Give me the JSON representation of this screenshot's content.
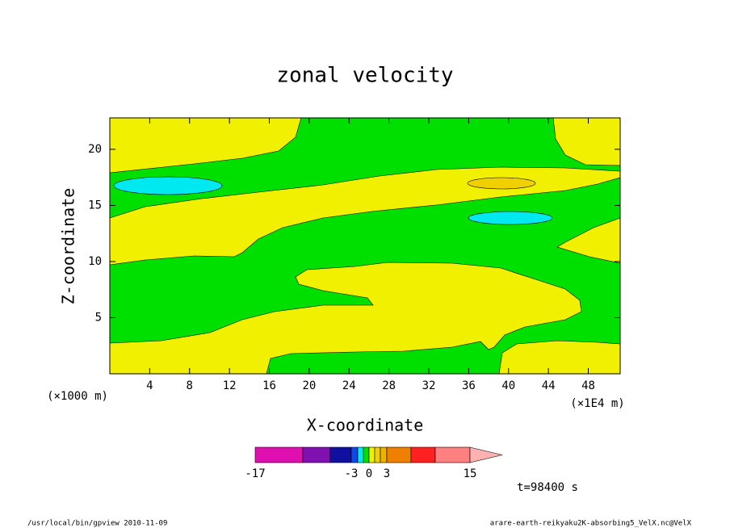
{
  "chart_data": {
    "type": "contour",
    "title": "zonal velocity",
    "x_label": "X-coordinate",
    "y_label": "Z-coordinate",
    "x_unit": "(×1E4 m)",
    "y_unit": "(×1000 m)",
    "xlim": [
      0,
      51.2
    ],
    "ylim": [
      0,
      22.8
    ],
    "xticks": [
      4,
      8,
      12,
      16,
      20,
      24,
      28,
      32,
      36,
      40,
      44,
      48
    ],
    "yticks": [
      5,
      10,
      15,
      20
    ],
    "levels": [
      -17,
      -12,
      -7,
      -3,
      -2,
      -1,
      0,
      1,
      2,
      3,
      7,
      11,
      15
    ],
    "level_colors": [
      "#e010b0",
      "#8010b0",
      "#1010a0",
      "#1048e8",
      "#00e8f0",
      "#00e000",
      "#f0f000",
      "#f0d000",
      "#f0b000",
      "#f08000",
      "#ff2020",
      "#ff8080",
      "#ffb0b0"
    ],
    "colorbar_ticks": [
      -17,
      -3,
      0,
      3,
      15
    ],
    "time_label": "t=98400 s",
    "footer_left": "/usr/local/bin/gpview  2010-11-09",
    "footer_right": "arare-earth-reikyaku2K-absorbing5_VelX.nc@VelX"
  }
}
